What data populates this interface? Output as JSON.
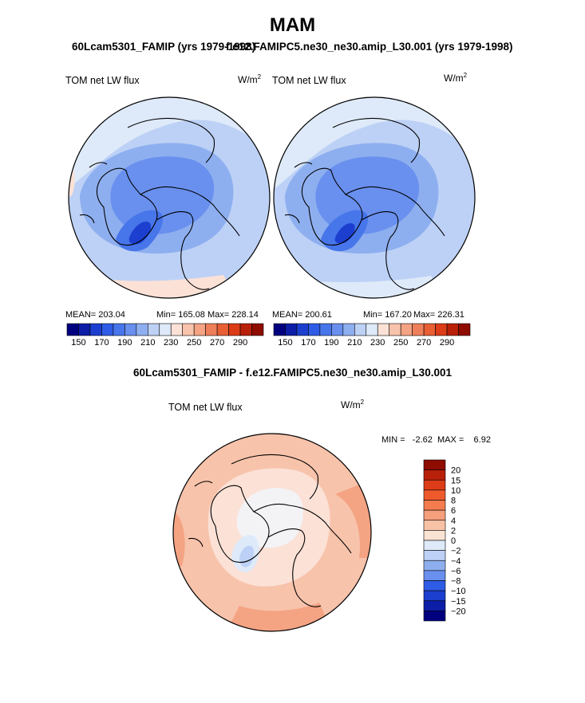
{
  "title": "MAM",
  "panels": [
    {
      "id": "left",
      "subtitle": "60Lcam5301_FAMIP (yrs 1979-1998)",
      "variable_label": "TOM net LW flux",
      "units_base": "W/m",
      "units_exp": "2",
      "mean_text": "MEAN= 203.04",
      "min_text": "Min= 165.08",
      "max_text": "Max= 228.14"
    },
    {
      "id": "right",
      "subtitle": "f.e12.FAMIPC5.ne30_ne30.amip_L30.001 (yrs 1979-1998)",
      "variable_label": "TOM net LW flux",
      "units_base": "W/m",
      "units_exp": "2",
      "mean_text": "MEAN= 200.61",
      "min_text": "Min= 167.20",
      "max_text": "Max= 226.31"
    }
  ],
  "difference": {
    "title": "60Lcam5301_FAMIP - f.e12.FAMIPC5.ne30_ne30.amip_L30.001",
    "variable_label": "TOM net LW flux",
    "units_base": "W/m",
    "units_exp": "2",
    "minmax_text": "MIN =   -2.62  MAX =    6.92"
  },
  "chart_data": [
    {
      "type": "heatmap",
      "projection": "north polar stereographic",
      "title": "60Lcam5301_FAMIP (yrs 1979-1998)",
      "variable": "TOM net LW flux",
      "units": "W/m^2",
      "mean": 203.04,
      "min": 165.08,
      "max": 228.14,
      "colorbar_ticks": [
        "150",
        "170",
        "190",
        "210",
        "230",
        "250",
        "270",
        "290"
      ],
      "colorbar_levels": [
        140,
        150,
        160,
        170,
        180,
        190,
        200,
        210,
        220,
        230,
        240,
        250,
        260,
        270,
        280,
        290,
        300
      ],
      "colorbar_colors": [
        "#00007f",
        "#0d1ea6",
        "#1c3fcf",
        "#2f5ce6",
        "#4775ea",
        "#6990ee",
        "#8eafef",
        "#bdd1f6",
        "#deeaf9",
        "#fbe1d6",
        "#f8c3ab",
        "#f4a383",
        "#ef7f5a",
        "#e85f34",
        "#dc3c17",
        "#b9200a",
        "#8f0c00"
      ]
    },
    {
      "type": "heatmap",
      "projection": "north polar stereographic",
      "title": "f.e12.FAMIPC5.ne30_ne30.amip_L30.001 (yrs 1979-1998)",
      "variable": "TOM net LW flux",
      "units": "W/m^2",
      "mean": 200.61,
      "min": 167.2,
      "max": 226.31,
      "colorbar_ticks": [
        "150",
        "170",
        "190",
        "210",
        "230",
        "250",
        "270",
        "290"
      ],
      "colorbar_levels": [
        140,
        150,
        160,
        170,
        180,
        190,
        200,
        210,
        220,
        230,
        240,
        250,
        260,
        270,
        280,
        290,
        300
      ],
      "colorbar_colors": [
        "#00007f",
        "#0d1ea6",
        "#1c3fcf",
        "#2f5ce6",
        "#4775ea",
        "#6990ee",
        "#8eafef",
        "#bdd1f6",
        "#deeaf9",
        "#fbe1d6",
        "#f8c3ab",
        "#f4a383",
        "#ef7f5a",
        "#e85f34",
        "#dc3c17",
        "#b9200a",
        "#8f0c00"
      ]
    },
    {
      "type": "heatmap",
      "projection": "north polar stereographic",
      "title": "60Lcam5301_FAMIP - f.e12.FAMIPC5.ne30_ne30.amip_L30.001",
      "variable": "TOM net LW flux",
      "units": "W/m^2",
      "min": -2.62,
      "max": 6.92,
      "colorbar_ticks": [
        "20",
        "15",
        "10",
        "8",
        "6",
        "4",
        "2",
        "0",
        "−2",
        "−4",
        "−6",
        "−8",
        "−10",
        "−15",
        "−20"
      ],
      "colorbar_colors": [
        "#8f0c00",
        "#b9200a",
        "#dc3c17",
        "#ef5a2c",
        "#f47c4e",
        "#f59f7c",
        "#f8c2a6",
        "#fbe3d3",
        "#deeaf9",
        "#bdd1f6",
        "#8eafef",
        "#6990ee",
        "#2f5ce6",
        "#1c3fcf",
        "#0d1ea6",
        "#00007f"
      ]
    }
  ]
}
